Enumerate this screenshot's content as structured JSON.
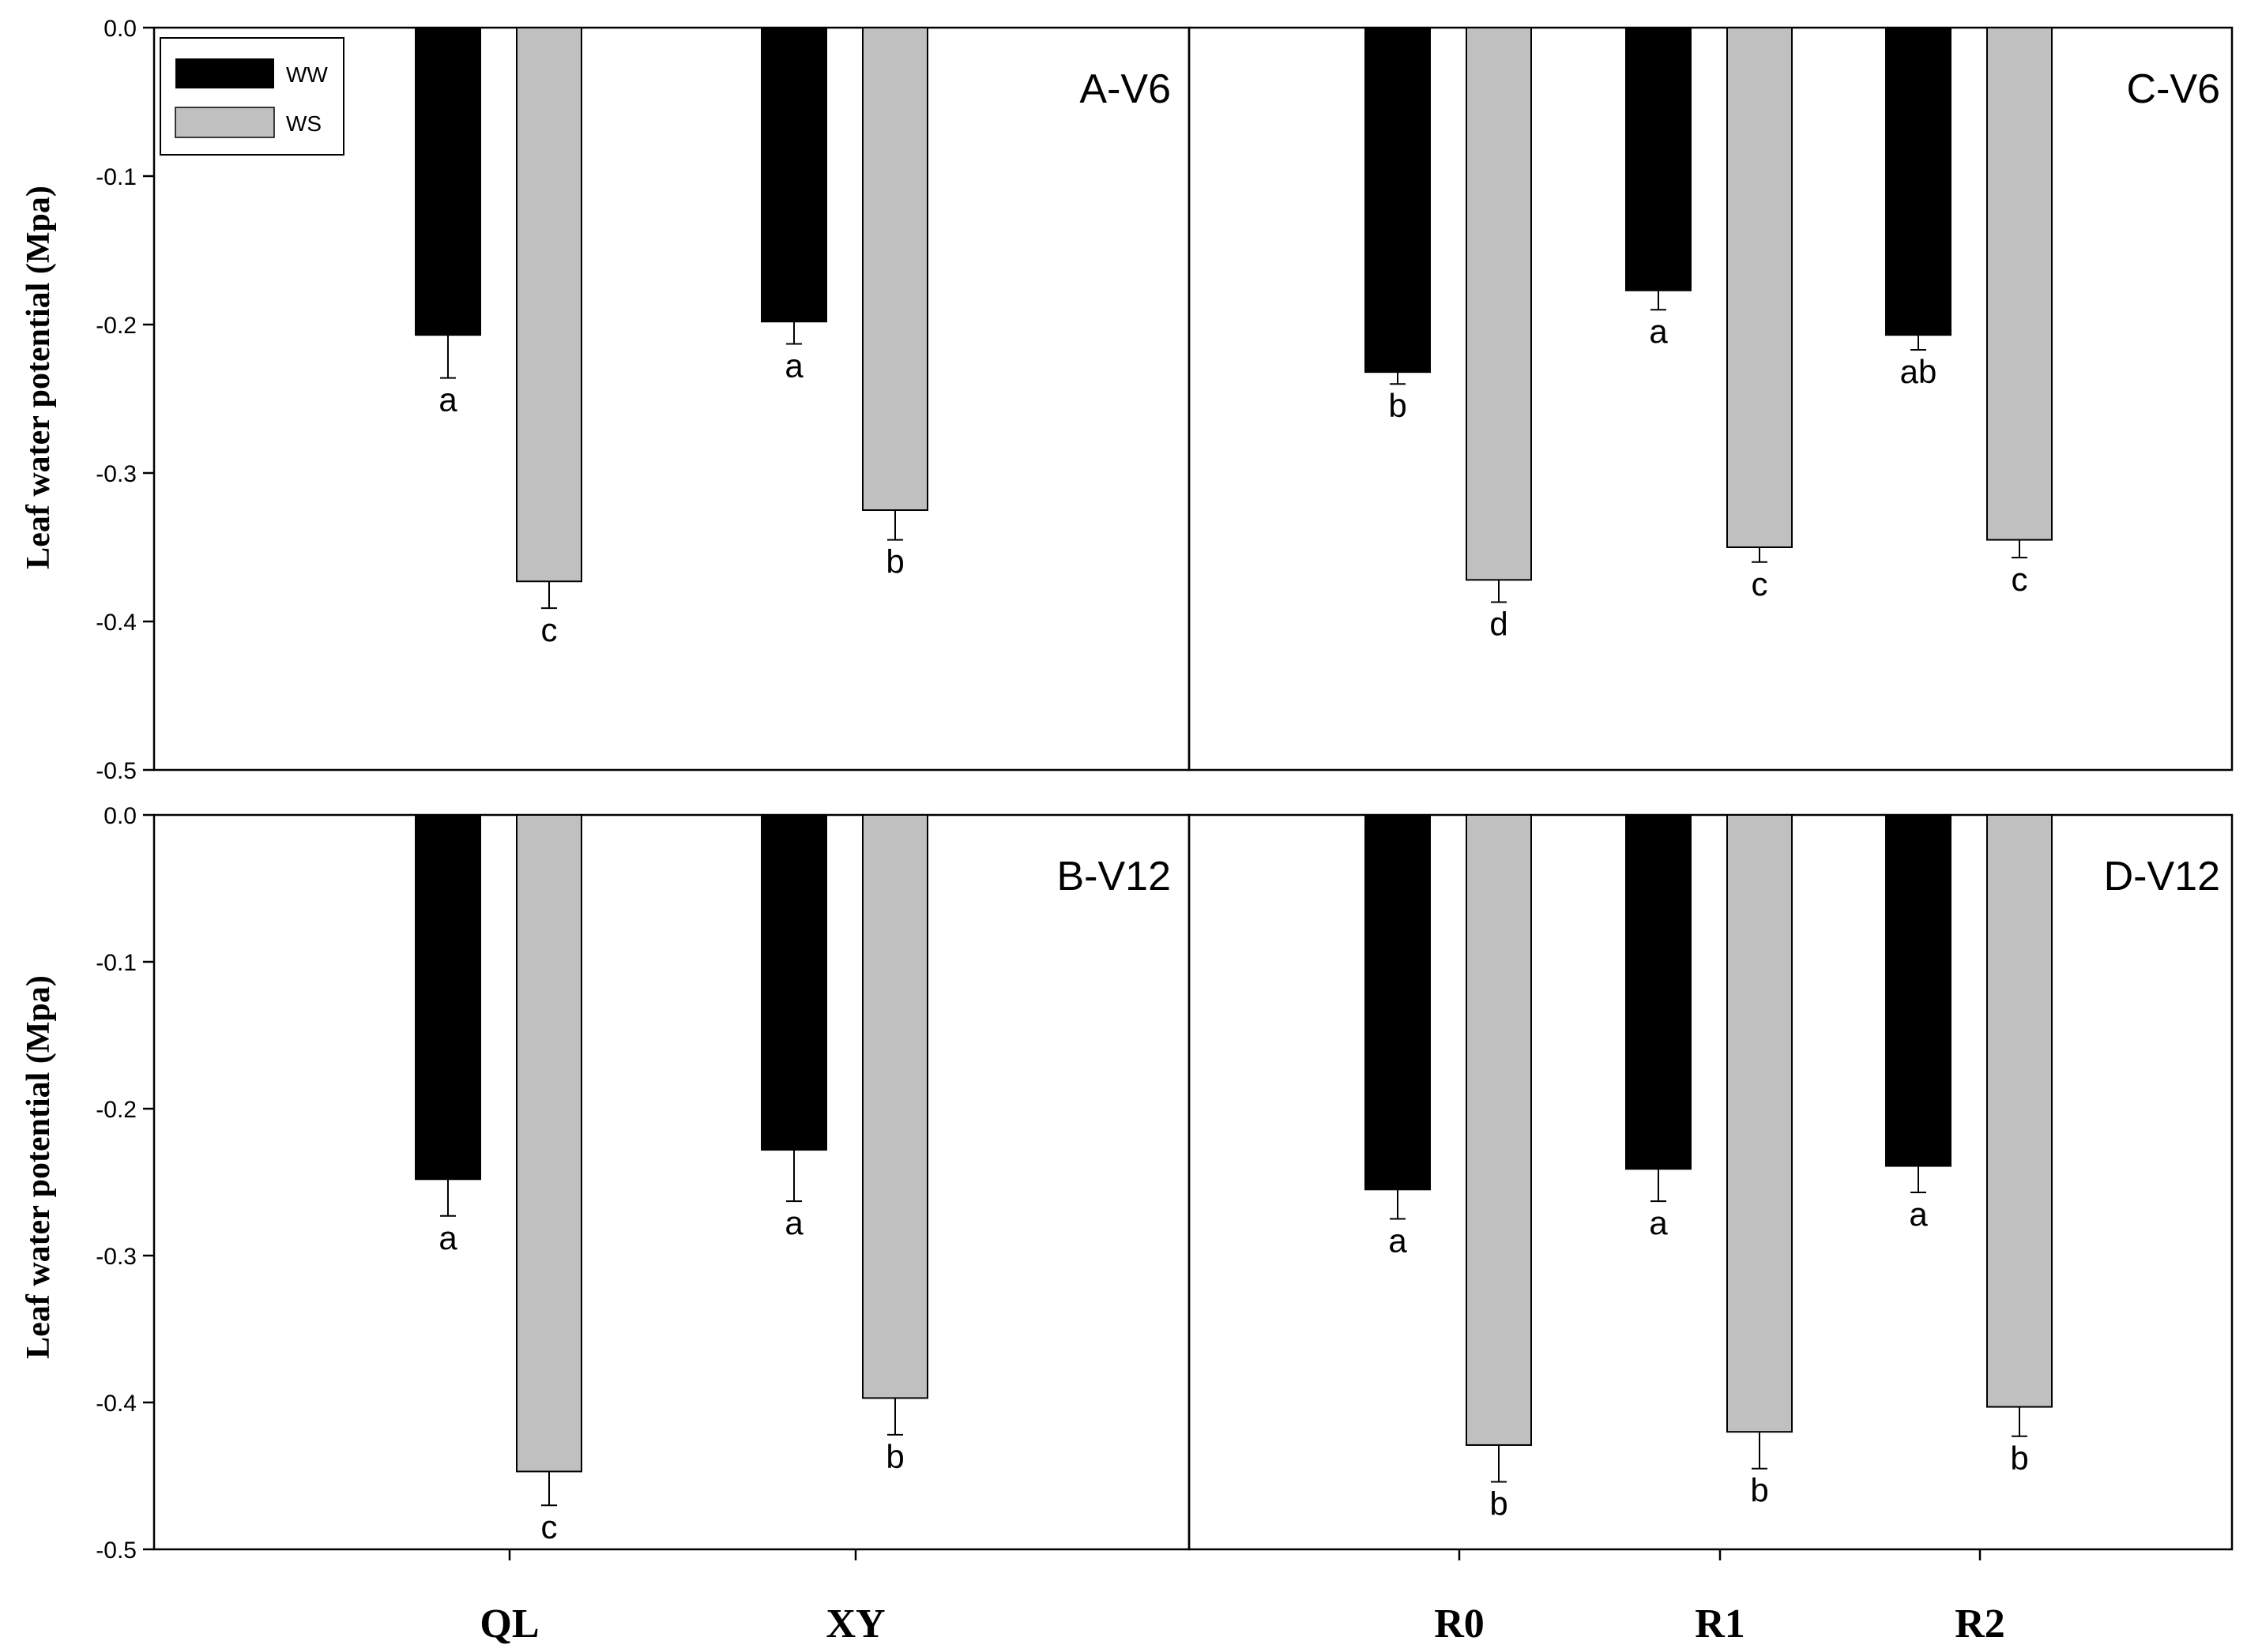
{
  "chart_data": [
    {
      "type": "bar",
      "panel": "A-V6",
      "categories": [
        "QL",
        "XY"
      ],
      "series": [
        {
          "name": "WW",
          "values": [
            -0.207,
            -0.198
          ],
          "errors": [
            0.029,
            0.015
          ],
          "letters": [
            "a",
            "a"
          ]
        },
        {
          "name": "WS",
          "values": [
            -0.373,
            -0.325
          ],
          "errors": [
            0.018,
            0.02
          ],
          "letters": [
            "c",
            "b"
          ]
        }
      ],
      "ylabel": "Leaf water potential (Mpa)",
      "ylim": [
        -0.5,
        0.0
      ],
      "yticks": [
        "0.0",
        "-0.1",
        "-0.2",
        "-0.3",
        "-0.4",
        "-0.5"
      ],
      "legend": "top-left"
    },
    {
      "type": "bar",
      "panel": "B-V12",
      "categories": [
        "QL",
        "XY"
      ],
      "series": [
        {
          "name": "WW",
          "values": [
            -0.248,
            -0.228
          ],
          "errors": [
            0.025,
            0.035
          ],
          "letters": [
            "a",
            "a"
          ]
        },
        {
          "name": "WS",
          "values": [
            -0.447,
            -0.397
          ],
          "errors": [
            0.023,
            0.025
          ],
          "letters": [
            "c",
            "b"
          ]
        }
      ],
      "ylabel": "Leaf water potential (Mpa)",
      "ylim": [
        -0.5,
        0.0
      ],
      "yticks": [
        "0.0",
        "-0.1",
        "-0.2",
        "-0.3",
        "-0.4",
        "-0.5"
      ]
    },
    {
      "type": "bar",
      "panel": "C-V6",
      "categories": [
        "R0",
        "R1",
        "R2"
      ],
      "series": [
        {
          "name": "WW",
          "values": [
            -0.232,
            -0.177,
            -0.207
          ],
          "errors": [
            0.008,
            0.013,
            0.01
          ],
          "letters": [
            "b",
            "a",
            "ab"
          ]
        },
        {
          "name": "WS",
          "values": [
            -0.372,
            -0.35,
            -0.345
          ],
          "errors": [
            0.015,
            0.01,
            0.012
          ],
          "letters": [
            "d",
            "c",
            "c"
          ]
        }
      ],
      "ylim": [
        -0.5,
        0.0
      ]
    },
    {
      "type": "bar",
      "panel": "D-V12",
      "categories": [
        "R0",
        "R1",
        "R2"
      ],
      "series": [
        {
          "name": "WW",
          "values": [
            -0.255,
            -0.241,
            -0.239
          ],
          "errors": [
            0.02,
            0.022,
            0.018
          ],
          "letters": [
            "a",
            "a",
            "a"
          ]
        },
        {
          "name": "WS",
          "values": [
            -0.429,
            -0.42,
            -0.403
          ],
          "errors": [
            0.025,
            0.025,
            0.02
          ],
          "letters": [
            "b",
            "b",
            "b"
          ]
        }
      ],
      "ylim": [
        -0.5,
        0.0
      ]
    }
  ],
  "legend": {
    "items": [
      {
        "name": "WW",
        "color": "#000000"
      },
      {
        "name": "WS",
        "color": "#c0c0c0"
      }
    ]
  },
  "x_categories_left": [
    "QL",
    "XY"
  ],
  "x_categories_right": [
    "R0",
    "R1",
    "R2"
  ],
  "colors": {
    "WW": "#000000",
    "WS": "#c0c0c0",
    "frame": "#000000"
  }
}
